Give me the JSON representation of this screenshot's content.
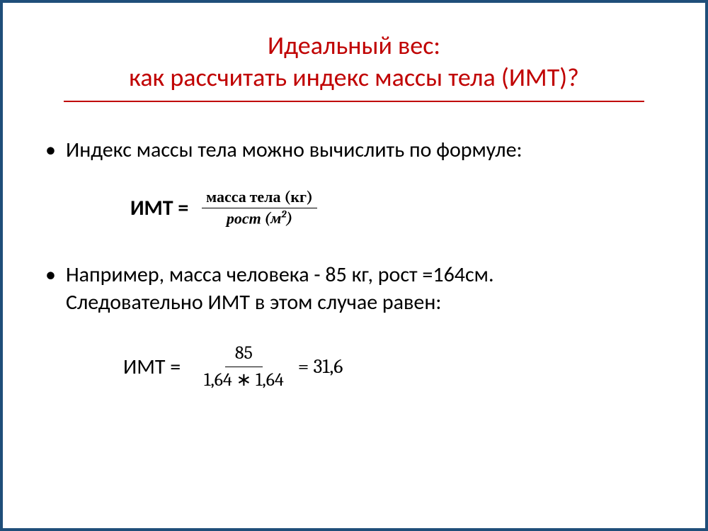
{
  "colors": {
    "frame_border": "#1f4e79",
    "title_color": "#c00000",
    "rule_color": "#c00000",
    "text_color": "#000000",
    "background": "#ffffff"
  },
  "title": {
    "line1": "Идеальный вес:",
    "line2": "как рассчитать индекс массы тела (ИМТ)?"
  },
  "bullets": {
    "b1": "Индекс массы тела можно вычислить по формуле:",
    "b2_part1": "Например, масса человека - 85 кг, рост =164см.",
    "b2_part2": "Следовательно ИМТ в этом случае равен:"
  },
  "formula1": {
    "lhs": "ИМТ = ",
    "numerator_label": "масса тела",
    "numerator_unit": "(кг)",
    "denominator_label": "рост",
    "denominator_unit_open": "(м",
    "denominator_exp": "2",
    "denominator_unit_close": ")"
  },
  "formula2": {
    "lhs": "ИМТ = ",
    "numerator": "85",
    "denominator": "1,64 ∗ 1,64",
    "equals_result": " = 31,6"
  }
}
